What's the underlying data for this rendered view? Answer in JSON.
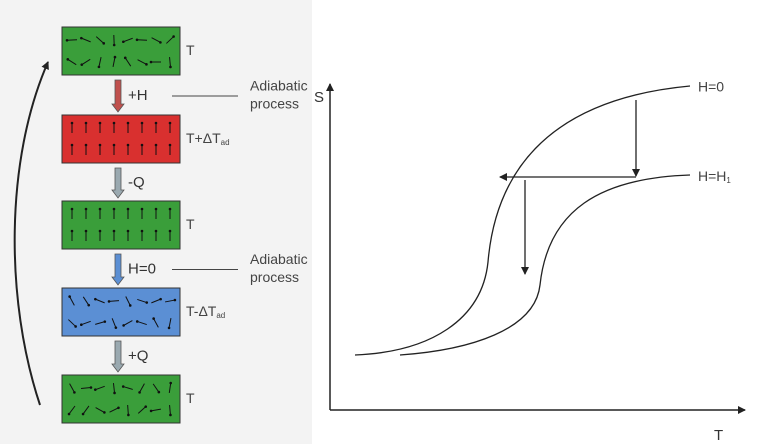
{
  "cycle": {
    "boxes": [
      {
        "label": "T"
      },
      {
        "label": "T+ΔT",
        "sub": "ad"
      },
      {
        "label": "T"
      },
      {
        "label": "T-ΔT",
        "sub": "ad"
      },
      {
        "label": "T"
      }
    ],
    "steps": [
      {
        "label": "+H",
        "note": [
          "Adiabatic",
          "process"
        ]
      },
      {
        "label": "-Q"
      },
      {
        "label": "H=0",
        "note": [
          "Adiabatic",
          "process"
        ]
      },
      {
        "label": "+Q"
      }
    ]
  },
  "graph": {
    "y_axis": "S",
    "x_axis": "T",
    "curves": [
      {
        "label": "H=0"
      },
      {
        "label": "H=H",
        "sub": "1"
      }
    ]
  }
}
